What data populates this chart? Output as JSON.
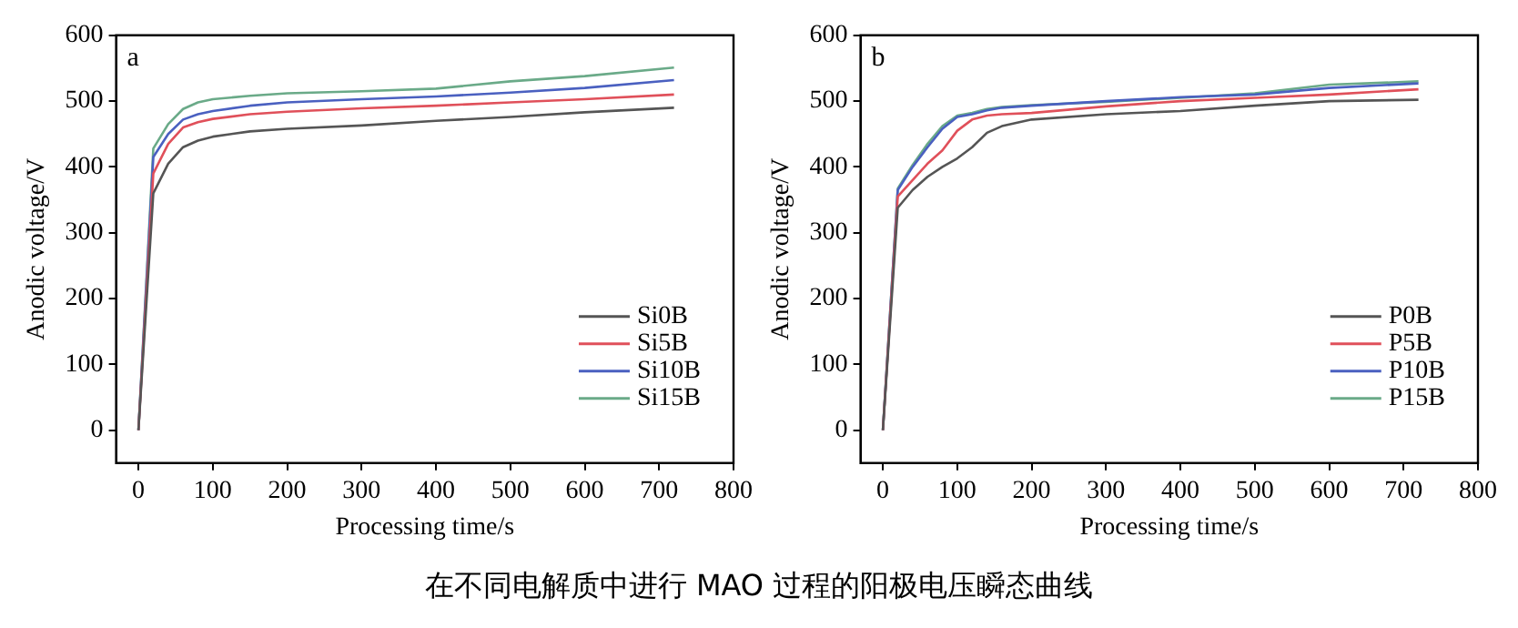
{
  "chart_data": [
    {
      "type": "line",
      "annotations": [
        "a"
      ],
      "xlabel": "Processing time/s",
      "ylabel": "Anodic voltage/V",
      "x": [
        0,
        20,
        40,
        60,
        80,
        100,
        150,
        200,
        300,
        400,
        500,
        600,
        720
      ],
      "series": [
        {
          "name": "Si0B",
          "color": "#555555",
          "values": [
            0,
            360,
            405,
            430,
            440,
            446,
            454,
            458,
            463,
            470,
            476,
            483,
            490
          ]
        },
        {
          "name": "Si5B",
          "color": "#e0505a",
          "values": [
            0,
            390,
            435,
            460,
            468,
            473,
            480,
            484,
            489,
            493,
            498,
            503,
            510
          ]
        },
        {
          "name": "Si10B",
          "color": "#4a60c0",
          "values": [
            0,
            415,
            450,
            472,
            480,
            485,
            493,
            498,
            503,
            507,
            513,
            520,
            532
          ]
        },
        {
          "name": "Si15B",
          "color": "#6aaa88",
          "values": [
            0,
            428,
            465,
            488,
            498,
            503,
            508,
            512,
            515,
            519,
            530,
            538,
            551
          ]
        }
      ],
      "xlim": [
        -30,
        800
      ],
      "xticks": [
        0,
        100,
        200,
        300,
        400,
        500,
        600,
        700,
        800
      ],
      "ylim": [
        -50,
        600
      ],
      "yticks": [
        0,
        100,
        200,
        300,
        400,
        500,
        600
      ],
      "legend": "bottom right",
      "grid": false,
      "marker": "none",
      "line_style": "solid"
    },
    {
      "type": "line",
      "annotations": [
        "b"
      ],
      "xlabel": "Processing time/s",
      "ylabel": "Anodic voltage/V",
      "x": [
        0,
        20,
        40,
        60,
        80,
        100,
        120,
        140,
        160,
        200,
        300,
        400,
        500,
        600,
        720
      ],
      "series": [
        {
          "name": "P0B",
          "color": "#555555",
          "values": [
            0,
            338,
            365,
            385,
            400,
            413,
            430,
            452,
            462,
            472,
            480,
            485,
            493,
            500,
            502
          ]
        },
        {
          "name": "P5B",
          "color": "#e0505a",
          "values": [
            0,
            355,
            380,
            405,
            425,
            455,
            472,
            478,
            480,
            482,
            492,
            500,
            505,
            510,
            518
          ]
        },
        {
          "name": "P10B",
          "color": "#4a60c0",
          "values": [
            0,
            365,
            400,
            430,
            458,
            476,
            480,
            486,
            490,
            493,
            500,
            506,
            510,
            520,
            527
          ]
        },
        {
          "name": "P15B",
          "color": "#6aaa88",
          "values": [
            0,
            367,
            403,
            435,
            462,
            478,
            482,
            488,
            491,
            494,
            499,
            505,
            512,
            525,
            530
          ]
        }
      ],
      "xlim": [
        -30,
        800
      ],
      "xticks": [
        0,
        100,
        200,
        300,
        400,
        500,
        600,
        700,
        800
      ],
      "ylim": [
        -50,
        600
      ],
      "yticks": [
        0,
        100,
        200,
        300,
        400,
        500,
        600
      ],
      "legend": "bottom right",
      "grid": false,
      "marker": "none",
      "line_style": "solid"
    },
    {
      "type": "other",
      "title": "在不同电解质中进行 MAO 过程的阳极电压瞬态曲线"
    }
  ]
}
